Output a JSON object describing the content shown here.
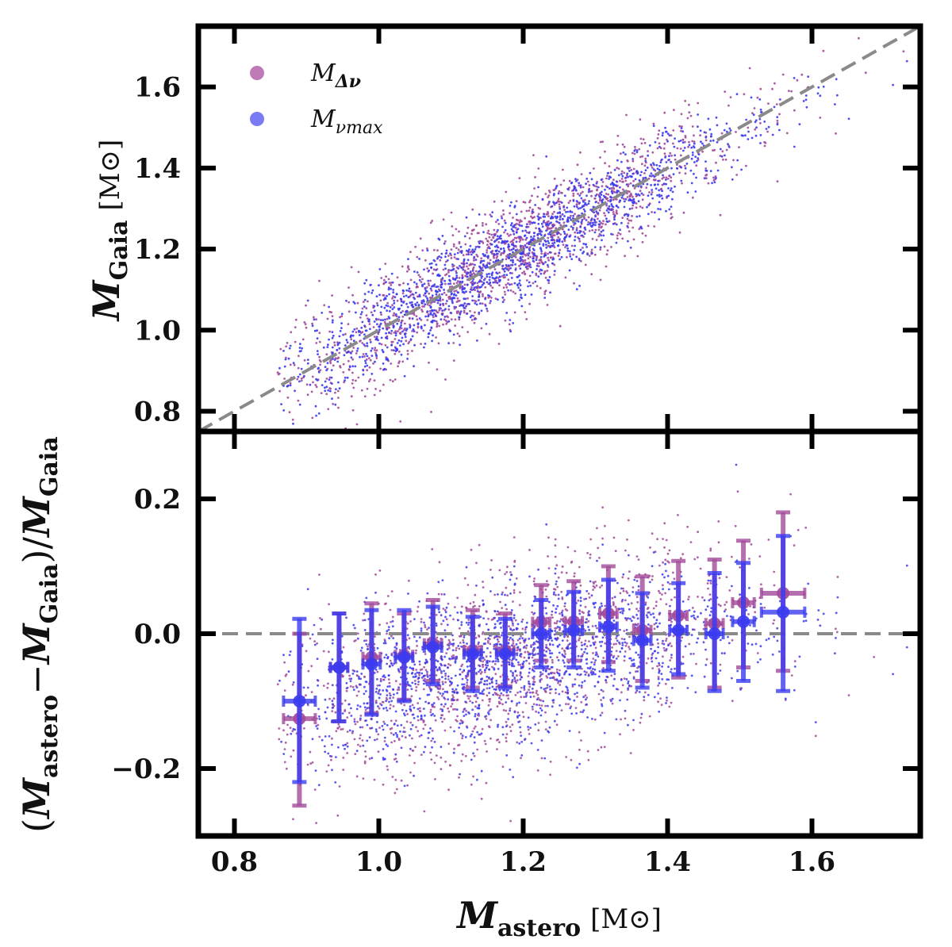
{
  "chart_data": [
    {
      "type": "scatter",
      "panel": "top",
      "xlim": [
        0.75,
        1.75
      ],
      "ylim": [
        0.75,
        1.75
      ],
      "yticks": [
        0.8,
        1.0,
        1.2,
        1.4,
        1.6
      ],
      "ytick_labels": [
        "0.8",
        "1.0",
        "1.2",
        "1.4",
        "1.6"
      ],
      "ylabel_main": "M",
      "ylabel_sub": "Gaia",
      "ylabel_unit": "[M⊙]",
      "one_to_one_line": "dashed gray y = x",
      "legend": {
        "placement": "top-left",
        "entries": [
          {
            "name": "M",
            "sub": "Δν",
            "color": "#a24a9a"
          },
          {
            "name": "M",
            "sub": "νmax",
            "color": "#3b3bf0"
          }
        ]
      },
      "series": [
        {
          "name": "M_Δν",
          "color": "#a24a9a",
          "points": 1500,
          "trend": "y ≈ x",
          "x_range": [
            0.86,
            1.72
          ],
          "scatter_sd": 0.06
        },
        {
          "name": "M_νmax",
          "color": "#3b3bf0",
          "points": 1500,
          "trend": "y ≈ x",
          "x_range": [
            0.86,
            1.72
          ],
          "scatter_sd": 0.055
        }
      ]
    },
    {
      "type": "scatter",
      "panel": "bottom",
      "xlim": [
        0.75,
        1.75
      ],
      "ylim": [
        -0.3,
        0.3
      ],
      "xticks": [
        0.8,
        1.0,
        1.2,
        1.4,
        1.6
      ],
      "xtick_labels": [
        "0.8",
        "1.0",
        "1.2",
        "1.4",
        "1.6"
      ],
      "yticks": [
        -0.2,
        0.0,
        0.2
      ],
      "ytick_labels": [
        "−0.2",
        "0.0",
        "0.2"
      ],
      "xlabel_main": "M",
      "xlabel_sub": "astero",
      "xlabel_unit": "[M⊙]",
      "ylabel_text": "(M astero − M Gaia)/M Gaia",
      "ylabel_parts": [
        "(",
        "M",
        "astero",
        "−",
        "M",
        "Gaia",
        ")",
        "/",
        "M",
        "Gaia"
      ],
      "zero_line": "dashed gray y = 0",
      "binned_series": [
        {
          "name": "M_Δν",
          "color": "#a24a9a",
          "bins": [
            {
              "x": 0.89,
              "y": -0.126,
              "xerr": 0.022,
              "ylo": -0.255,
              "yhi": 0.0
            },
            {
              "x": 0.945,
              "y": -0.05,
              "xerr": 0.012,
              "ylo": -0.13,
              "yhi": 0.03
            },
            {
              "x": 0.99,
              "y": -0.035,
              "xerr": 0.012,
              "ylo": -0.118,
              "yhi": 0.045
            },
            {
              "x": 1.035,
              "y": -0.032,
              "xerr": 0.012,
              "ylo": -0.098,
              "yhi": 0.03
            },
            {
              "x": 1.075,
              "y": -0.015,
              "xerr": 0.012,
              "ylo": -0.07,
              "yhi": 0.05
            },
            {
              "x": 1.13,
              "y": -0.025,
              "xerr": 0.012,
              "ylo": -0.08,
              "yhi": 0.035
            },
            {
              "x": 1.175,
              "y": -0.025,
              "xerr": 0.012,
              "ylo": -0.078,
              "yhi": 0.03
            },
            {
              "x": 1.225,
              "y": 0.017,
              "xerr": 0.012,
              "ylo": -0.04,
              "yhi": 0.072
            },
            {
              "x": 1.27,
              "y": 0.018,
              "xerr": 0.012,
              "ylo": -0.04,
              "yhi": 0.078
            },
            {
              "x": 1.318,
              "y": 0.03,
              "xerr": 0.012,
              "ylo": -0.042,
              "yhi": 0.1
            },
            {
              "x": 1.365,
              "y": 0.005,
              "xerr": 0.012,
              "ylo": -0.07,
              "yhi": 0.085
            },
            {
              "x": 1.415,
              "y": 0.027,
              "xerr": 0.012,
              "ylo": -0.065,
              "yhi": 0.108
            },
            {
              "x": 1.465,
              "y": 0.015,
              "xerr": 0.012,
              "ylo": -0.08,
              "yhi": 0.11
            },
            {
              "x": 1.505,
              "y": 0.046,
              "xerr": 0.015,
              "ylo": -0.05,
              "yhi": 0.138
            },
            {
              "x": 1.56,
              "y": 0.06,
              "xerr": 0.03,
              "ylo": -0.055,
              "yhi": 0.18
            }
          ]
        },
        {
          "name": "M_νmax",
          "color": "#3b3bf0",
          "bins": [
            {
              "x": 0.89,
              "y": -0.1,
              "xerr": 0.022,
              "ylo": -0.22,
              "yhi": 0.022
            },
            {
              "x": 0.945,
              "y": -0.05,
              "xerr": 0.012,
              "ylo": -0.13,
              "yhi": 0.03
            },
            {
              "x": 0.99,
              "y": -0.045,
              "xerr": 0.012,
              "ylo": -0.12,
              "yhi": 0.035
            },
            {
              "x": 1.035,
              "y": -0.035,
              "xerr": 0.012,
              "ylo": -0.1,
              "yhi": 0.035
            },
            {
              "x": 1.075,
              "y": -0.02,
              "xerr": 0.012,
              "ylo": -0.075,
              "yhi": 0.04
            },
            {
              "x": 1.13,
              "y": -0.03,
              "xerr": 0.012,
              "ylo": -0.085,
              "yhi": 0.025
            },
            {
              "x": 1.175,
              "y": -0.03,
              "xerr": 0.012,
              "ylo": -0.08,
              "yhi": 0.022
            },
            {
              "x": 1.225,
              "y": 0.0,
              "xerr": 0.012,
              "ylo": -0.05,
              "yhi": 0.05
            },
            {
              "x": 1.27,
              "y": 0.005,
              "xerr": 0.012,
              "ylo": -0.05,
              "yhi": 0.062
            },
            {
              "x": 1.318,
              "y": 0.01,
              "xerr": 0.012,
              "ylo": -0.055,
              "yhi": 0.08
            },
            {
              "x": 1.365,
              "y": -0.01,
              "xerr": 0.012,
              "ylo": -0.08,
              "yhi": 0.06
            },
            {
              "x": 1.415,
              "y": 0.005,
              "xerr": 0.012,
              "ylo": -0.06,
              "yhi": 0.075
            },
            {
              "x": 1.465,
              "y": 0.0,
              "xerr": 0.012,
              "ylo": -0.085,
              "yhi": 0.09
            },
            {
              "x": 1.505,
              "y": 0.018,
              "xerr": 0.015,
              "ylo": -0.07,
              "yhi": 0.105
            },
            {
              "x": 1.56,
              "y": 0.032,
              "xerr": 0.03,
              "ylo": -0.085,
              "yhi": 0.145
            }
          ]
        }
      ],
      "series": [
        {
          "name": "M_Δν residual",
          "color": "#a24a9a",
          "points": 1500,
          "trend": "rises from −0.12 at 0.9 to +0.06 at 1.6"
        },
        {
          "name": "M_νmax residual",
          "color": "#3b3bf0",
          "points": 1500,
          "trend": "rises from −0.10 at 0.9 to +0.03 at 1.6"
        }
      ]
    }
  ]
}
